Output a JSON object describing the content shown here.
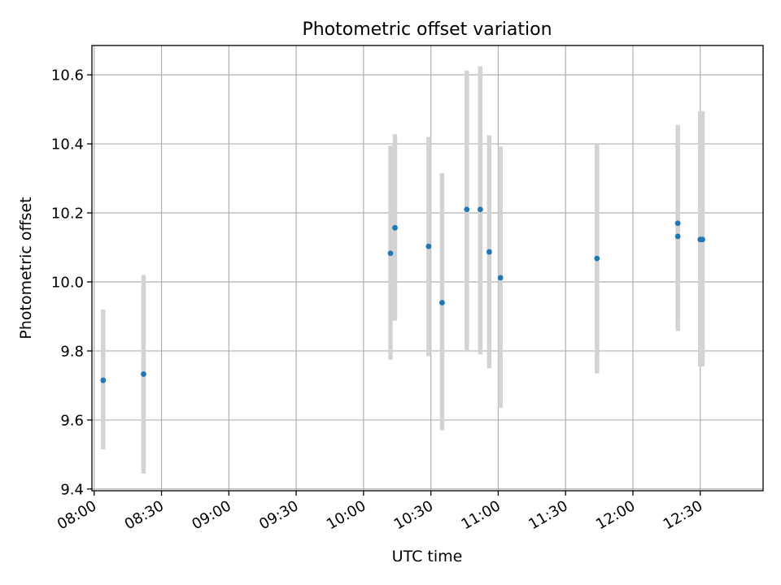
{
  "chart_data": {
    "type": "scatter",
    "title": "Photometric offset variation",
    "xlabel": "UTC time",
    "ylabel": "Photometric offset",
    "xlim": [
      "07:59",
      "12:58"
    ],
    "ylim": [
      9.395,
      10.685
    ],
    "grid": true,
    "x_ticks": [
      "08:00",
      "08:30",
      "09:00",
      "09:30",
      "10:00",
      "10:30",
      "11:00",
      "11:30",
      "12:00",
      "12:30"
    ],
    "y_ticks": [
      "9.4",
      "9.6",
      "9.8",
      "10.0",
      "10.2",
      "10.4",
      "10.6"
    ],
    "colors": {
      "marker": "#1f77b4",
      "errorbar": "#d3d3d3"
    },
    "points": [
      {
        "x": "08:04",
        "y": 9.715,
        "low": 9.515,
        "high": 9.92
      },
      {
        "x": "08:22",
        "y": 9.733,
        "low": 9.445,
        "high": 10.02
      },
      {
        "x": "10:12",
        "y": 10.083,
        "low": 9.775,
        "high": 10.395
      },
      {
        "x": "10:14",
        "y": 10.157,
        "low": 9.888,
        "high": 10.428
      },
      {
        "x": "10:29",
        "y": 10.103,
        "low": 9.785,
        "high": 10.42
      },
      {
        "x": "10:35",
        "y": 9.94,
        "low": 9.57,
        "high": 10.315
      },
      {
        "x": "10:46",
        "y": 10.21,
        "low": 9.8,
        "high": 10.612
      },
      {
        "x": "10:52",
        "y": 10.21,
        "low": 9.79,
        "high": 10.625
      },
      {
        "x": "10:56",
        "y": 10.087,
        "low": 9.75,
        "high": 10.425
      },
      {
        "x": "11:01",
        "y": 10.012,
        "low": 9.635,
        "high": 10.392
      },
      {
        "x": "11:44",
        "y": 10.068,
        "low": 9.735,
        "high": 10.4
      },
      {
        "x": "12:20",
        "y": 10.17,
        "low": 9.885,
        "high": 10.455
      },
      {
        "x": "12:20",
        "y": 10.132,
        "low": 9.858,
        "high": 10.41
      },
      {
        "x": "12:30",
        "y": 10.123,
        "low": 9.755,
        "high": 10.495
      },
      {
        "x": "12:31",
        "y": 10.123,
        "low": 9.755,
        "high": 10.495
      }
    ]
  }
}
